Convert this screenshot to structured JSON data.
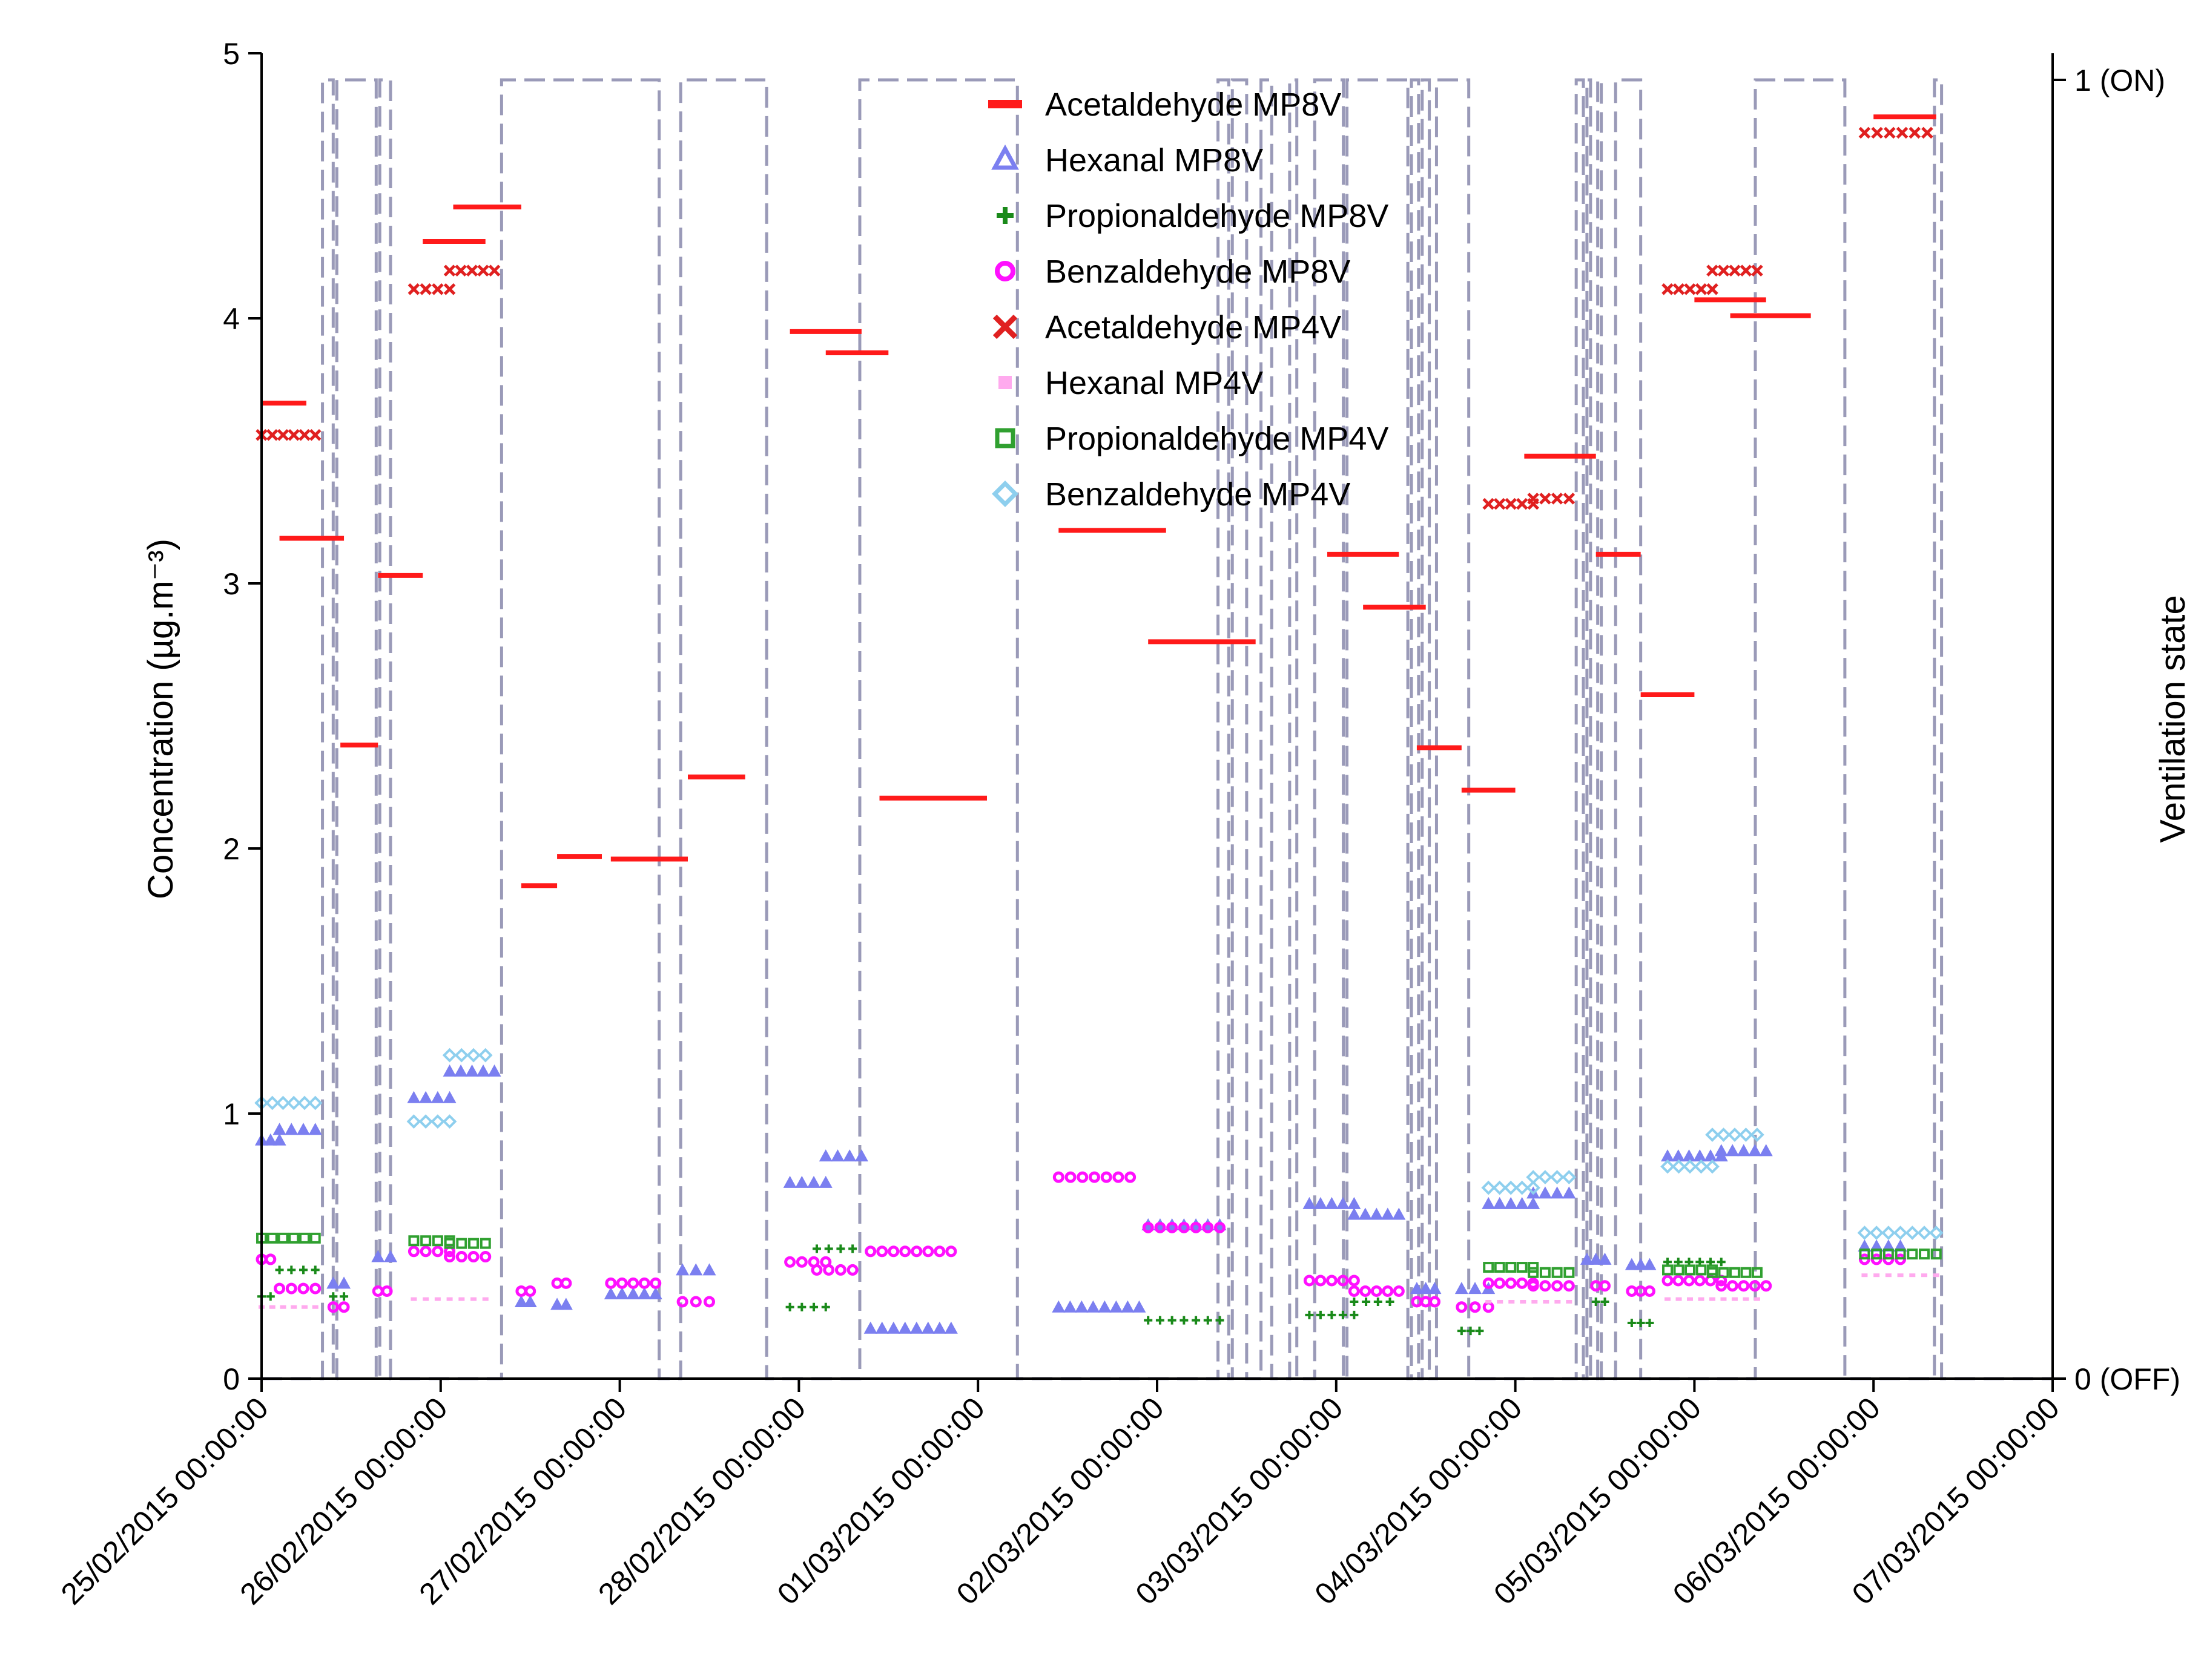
{
  "chart_data": {
    "type": "scatter",
    "title": "",
    "xlabel": "",
    "ylabel": "Concentration (µg.m⁻³)",
    "y2label": "Ventilation state",
    "ylim": [
      0,
      5
    ],
    "y2lim": [
      0,
      1
    ],
    "yticks": [
      "0",
      "1",
      "2",
      "3",
      "4",
      "5"
    ],
    "y2ticks": [
      "0 (OFF)",
      "1 (ON)"
    ],
    "xlim_days": [
      0,
      10
    ],
    "xtick_labels": [
      "25/02/2015 00:00:00",
      "26/02/2015 00:00:00",
      "27/02/2015 00:00:00",
      "28/02/2015 00:00:00",
      "01/03/2015 00:00:00",
      "02/03/2015 00:00:00",
      "03/03/2015 00:00:00",
      "04/03/2015 00:00:00",
      "05/03/2015 00:00:00",
      "06/03/2015 00:00:00",
      "07/03/2015 00:00:00"
    ],
    "legend_position": "top-center",
    "series": [
      {
        "name": "Acetaldehyde MP8V",
        "marker": "dash",
        "color": "#ff1a1a",
        "segments": [
          [
            0.0,
            0.25,
            3.68
          ],
          [
            0.1,
            0.46,
            3.17
          ],
          [
            0.44,
            0.65,
            2.39
          ],
          [
            0.65,
            0.9,
            3.03
          ],
          [
            0.9,
            1.25,
            4.29
          ],
          [
            1.07,
            1.45,
            4.42
          ],
          [
            1.45,
            1.65,
            1.86
          ],
          [
            1.65,
            1.9,
            1.97
          ],
          [
            1.95,
            2.38,
            1.96
          ],
          [
            2.38,
            2.7,
            2.27
          ],
          [
            2.95,
            3.35,
            3.95
          ],
          [
            3.15,
            3.5,
            3.87
          ],
          [
            3.45,
            4.05,
            2.19
          ],
          [
            4.45,
            5.05,
            3.2
          ],
          [
            4.95,
            5.55,
            2.78
          ],
          [
            5.95,
            6.35,
            3.11
          ],
          [
            6.15,
            6.5,
            2.91
          ],
          [
            6.45,
            6.7,
            2.38
          ],
          [
            6.7,
            7.0,
            2.22
          ],
          [
            7.05,
            7.45,
            3.48
          ],
          [
            7.45,
            7.7,
            3.11
          ],
          [
            7.7,
            8.0,
            2.58
          ],
          [
            8.0,
            8.4,
            4.07
          ],
          [
            8.2,
            8.65,
            4.01
          ],
          [
            9.0,
            9.35,
            4.76
          ]
        ]
      },
      {
        "name": "Hexanal MP8V",
        "marker": "triangle",
        "color": "#7b7ff0",
        "segments": [
          [
            0.0,
            0.1,
            0.9
          ],
          [
            0.1,
            0.3,
            0.94
          ],
          [
            0.4,
            0.46,
            0.36
          ],
          [
            0.65,
            0.72,
            0.46
          ],
          [
            0.85,
            1.05,
            1.06
          ],
          [
            1.05,
            1.3,
            1.16
          ],
          [
            1.45,
            1.5,
            0.29
          ],
          [
            1.65,
            1.7,
            0.28
          ],
          [
            1.95,
            2.2,
            0.32
          ],
          [
            2.35,
            2.5,
            0.41
          ],
          [
            2.95,
            3.15,
            0.74
          ],
          [
            3.15,
            3.35,
            0.84
          ],
          [
            3.4,
            3.85,
            0.19
          ],
          [
            4.45,
            4.9,
            0.27
          ],
          [
            4.95,
            5.35,
            0.58
          ],
          [
            5.85,
            6.1,
            0.66
          ],
          [
            6.1,
            6.35,
            0.62
          ],
          [
            6.45,
            6.55,
            0.34
          ],
          [
            6.7,
            6.85,
            0.34
          ],
          [
            6.85,
            7.1,
            0.66
          ],
          [
            7.1,
            7.3,
            0.7
          ],
          [
            7.4,
            7.5,
            0.45
          ],
          [
            7.65,
            7.75,
            0.43
          ],
          [
            7.85,
            8.15,
            0.84
          ],
          [
            8.15,
            8.4,
            0.86
          ],
          [
            8.95,
            9.15,
            0.5
          ]
        ]
      },
      {
        "name": "Propionaldehyde MP8V",
        "marker": "plus",
        "color": "#1a8a1a",
        "segments": [
          [
            0.0,
            0.05,
            0.31
          ],
          [
            0.1,
            0.3,
            0.41
          ],
          [
            0.4,
            0.46,
            0.31
          ],
          [
            2.95,
            3.15,
            0.27
          ],
          [
            3.1,
            3.3,
            0.49
          ],
          [
            4.95,
            5.35,
            0.22
          ],
          [
            5.85,
            6.1,
            0.24
          ],
          [
            6.1,
            6.3,
            0.29
          ],
          [
            6.7,
            6.8,
            0.18
          ],
          [
            7.45,
            7.5,
            0.29
          ],
          [
            7.65,
            7.75,
            0.21
          ],
          [
            7.85,
            8.15,
            0.44
          ]
        ]
      },
      {
        "name": "Benzaldehyde MP8V",
        "marker": "circle",
        "color": "#ff10ff",
        "segments": [
          [
            0.0,
            0.05,
            0.45
          ],
          [
            0.1,
            0.3,
            0.34
          ],
          [
            0.4,
            0.46,
            0.27
          ],
          [
            0.65,
            0.7,
            0.33
          ],
          [
            0.85,
            1.05,
            0.48
          ],
          [
            1.05,
            1.25,
            0.46
          ],
          [
            1.45,
            1.5,
            0.33
          ],
          [
            1.65,
            1.7,
            0.36
          ],
          [
            1.95,
            2.2,
            0.36
          ],
          [
            2.35,
            2.5,
            0.29
          ],
          [
            2.95,
            3.15,
            0.44
          ],
          [
            3.1,
            3.3,
            0.41
          ],
          [
            3.4,
            3.85,
            0.48
          ],
          [
            4.45,
            4.85,
            0.76
          ],
          [
            4.95,
            5.35,
            0.57
          ],
          [
            5.85,
            6.1,
            0.37
          ],
          [
            6.1,
            6.35,
            0.33
          ],
          [
            6.45,
            6.55,
            0.29
          ],
          [
            6.7,
            6.85,
            0.27
          ],
          [
            6.85,
            7.1,
            0.36
          ],
          [
            7.1,
            7.3,
            0.35
          ],
          [
            7.45,
            7.5,
            0.35
          ],
          [
            7.65,
            7.75,
            0.33
          ],
          [
            7.85,
            8.15,
            0.37
          ],
          [
            8.15,
            8.4,
            0.35
          ],
          [
            8.95,
            9.15,
            0.45
          ]
        ]
      },
      {
        "name": "Acetaldehyde MP4V",
        "marker": "x",
        "color": "#e02020",
        "segments": [
          [
            0.0,
            0.3,
            3.56
          ],
          [
            0.85,
            1.05,
            4.11
          ],
          [
            1.05,
            1.3,
            4.18
          ],
          [
            6.85,
            7.1,
            3.3
          ],
          [
            7.1,
            7.3,
            3.32
          ],
          [
            7.85,
            8.1,
            4.11
          ],
          [
            8.1,
            8.35,
            4.18
          ],
          [
            8.95,
            9.3,
            4.7
          ]
        ]
      },
      {
        "name": "Hexanal MP4V",
        "marker": "small-square",
        "color": "#ffaaee",
        "segments": [
          [
            0.0,
            0.3,
            0.27
          ],
          [
            0.85,
            1.25,
            0.3
          ],
          [
            6.85,
            7.3,
            0.29
          ],
          [
            7.85,
            8.35,
            0.3
          ],
          [
            8.95,
            9.35,
            0.39
          ]
        ]
      },
      {
        "name": "Propionaldehyde MP4V",
        "marker": "square",
        "color": "#30a030",
        "segments": [
          [
            0.0,
            0.3,
            0.53
          ],
          [
            0.85,
            1.05,
            0.52
          ],
          [
            1.05,
            1.25,
            0.51
          ],
          [
            6.85,
            7.1,
            0.42
          ],
          [
            7.1,
            7.3,
            0.4
          ],
          [
            7.85,
            8.1,
            0.41
          ],
          [
            8.1,
            8.35,
            0.4
          ],
          [
            8.95,
            9.35,
            0.47
          ]
        ]
      },
      {
        "name": "Benzaldehyde MP4V",
        "marker": "diamond",
        "color": "#8ecfee",
        "segments": [
          [
            0.0,
            0.3,
            1.04
          ],
          [
            0.85,
            1.05,
            0.97
          ],
          [
            1.05,
            1.25,
            1.22
          ],
          [
            6.85,
            7.1,
            0.72
          ],
          [
            7.1,
            7.3,
            0.76
          ],
          [
            7.85,
            8.1,
            0.8
          ],
          [
            8.1,
            8.35,
            0.92
          ],
          [
            8.95,
            9.35,
            0.55
          ]
        ]
      }
    ],
    "ventilation_on_intervals": [
      [
        0.34,
        0.4
      ],
      [
        0.42,
        0.64
      ],
      [
        0.66,
        0.72
      ],
      [
        1.34,
        2.22
      ],
      [
        2.34,
        2.82
      ],
      [
        3.34,
        4.22
      ],
      [
        5.34,
        5.4
      ],
      [
        5.42,
        5.5
      ],
      [
        5.58,
        5.64
      ],
      [
        5.74,
        5.78
      ],
      [
        5.88,
        6.04
      ],
      [
        6.06,
        6.4
      ],
      [
        6.42,
        6.46
      ],
      [
        6.48,
        6.52
      ],
      [
        6.56,
        6.74
      ],
      [
        7.34,
        7.38
      ],
      [
        7.4,
        7.42
      ],
      [
        7.46,
        7.48
      ],
      [
        7.56,
        7.7
      ],
      [
        8.34,
        8.84
      ],
      [
        9.34,
        9.38
      ]
    ]
  }
}
